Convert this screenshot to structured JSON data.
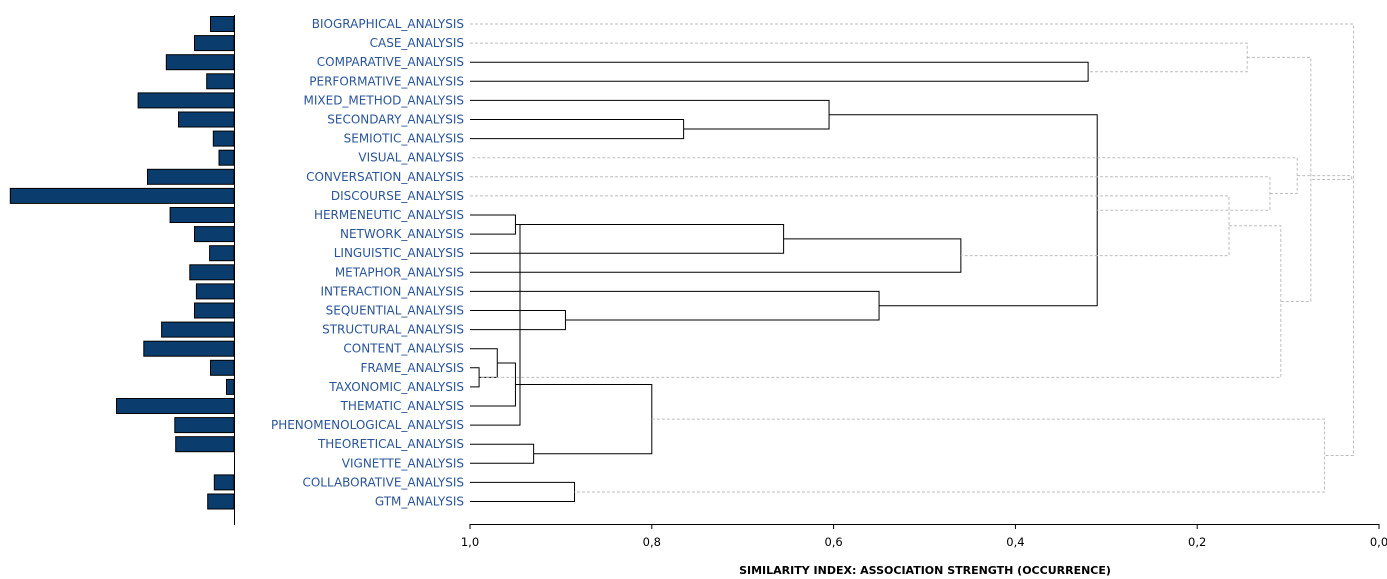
{
  "chart_data": {
    "type": "dendrogram",
    "xlabel": "SIMILARITY INDEX: ASSOCIATION STRENGTH (OCCURRENCE)",
    "xlim": [
      1.0,
      0.0
    ],
    "xticks": [
      "1,0",
      "0,8",
      "0,6",
      "0,4",
      "0,2",
      "0,0"
    ],
    "colors": {
      "bar": "#0a3d6e",
      "label": "#2a5599",
      "solid_link": "#000000",
      "dashed_link": "#bdbdbd"
    },
    "leaves": [
      {
        "label": "BIOGRAPHICAL_ANALYSIS",
        "bar": 2.5
      },
      {
        "label": "CASE_ANALYSIS",
        "bar": 4.2
      },
      {
        "label": "COMPARATIVE_ANALYSIS",
        "bar": 7.2
      },
      {
        "label": "PERFORMATIVE_ANALYSIS",
        "bar": 2.9
      },
      {
        "label": "MIXED_METHOD_ANALYSIS",
        "bar": 10.2
      },
      {
        "label": "SECONDARY_ANALYSIS",
        "bar": 5.9
      },
      {
        "label": "SEMIOTIC_ANALYSIS",
        "bar": 2.2
      },
      {
        "label": "VISUAL_ANALYSIS",
        "bar": 1.6
      },
      {
        "label": "CONVERSATION_ANALYSIS",
        "bar": 9.2
      },
      {
        "label": "DISCOURSE_ANALYSIS",
        "bar": 23.8
      },
      {
        "label": "HERMENEUTIC_ANALYSIS",
        "bar": 6.8
      },
      {
        "label": "NETWORK_ANALYSIS",
        "bar": 4.2
      },
      {
        "label": "LINGUISTIC_ANALYSIS",
        "bar": 2.6
      },
      {
        "label": "METAPHOR_ANALYSIS",
        "bar": 4.7
      },
      {
        "label": "INTERACTION_ANALYSIS",
        "bar": 4.0
      },
      {
        "label": "SEQUENTIAL_ANALYSIS",
        "bar": 4.2
      },
      {
        "label": "STRUCTURAL_ANALYSIS",
        "bar": 7.7
      },
      {
        "label": "CONTENT_ANALYSIS",
        "bar": 9.6
      },
      {
        "label": "FRAME_ANALYSIS",
        "bar": 2.5
      },
      {
        "label": "TAXONOMIC_ANALYSIS",
        "bar": 0.8
      },
      {
        "label": "THEMATIC_ANALYSIS",
        "bar": 12.5
      },
      {
        "label": "PHENOMENOLOGICAL_ANALYSIS",
        "bar": 6.3
      },
      {
        "label": "THEORETICAL_ANALYSIS",
        "bar": 6.2
      },
      {
        "label": "VIGNETTE_ANALYSIS",
        "bar": 0
      },
      {
        "label": "COLLABORATIVE_ANALYSIS",
        "bar": 2.1
      },
      {
        "label": "GTM_ANALYSIS",
        "bar": 2.8
      }
    ],
    "merges": [
      {
        "a": 19,
        "b": 18,
        "sim": 0.99,
        "style": "solid"
      },
      {
        "a": 17,
        "b": 26,
        "sim": 0.97,
        "style": "solid"
      },
      {
        "a": 10,
        "b": 11,
        "sim": 0.95,
        "style": "solid"
      },
      {
        "a": 27,
        "b": 20,
        "sim": 0.95,
        "style": "solid"
      },
      {
        "a": 28,
        "b": 21,
        "sim": 0.945,
        "style": "solid"
      },
      {
        "a": 22,
        "b": 23,
        "sim": 0.93,
        "style": "solid"
      },
      {
        "a": 15,
        "b": 16,
        "sim": 0.895,
        "style": "solid"
      },
      {
        "a": 24,
        "b": 25,
        "sim": 0.885,
        "style": "solid"
      },
      {
        "a": 29,
        "b": 31,
        "sim": 0.8,
        "style": "solid"
      },
      {
        "a": 5,
        "b": 6,
        "sim": 0.765,
        "style": "solid"
      },
      {
        "a": 28,
        "b": 12,
        "sim": 0.655,
        "style": "solid"
      },
      {
        "a": 4,
        "b": 35,
        "sim": 0.605,
        "style": "solid"
      },
      {
        "a": 14,
        "b": 32,
        "sim": 0.55,
        "style": "solid"
      },
      {
        "a": 36,
        "b": 13,
        "sim": 0.46,
        "style": "solid"
      },
      {
        "a": 2,
        "b": 3,
        "sim": 0.32,
        "style": "solid"
      },
      {
        "a": 38,
        "b": 37,
        "sim": 0.31,
        "style": "solid"
      },
      {
        "a": 9,
        "b": 39,
        "sim": 0.165,
        "style": "dashed"
      },
      {
        "a": 1,
        "b": 40,
        "sim": 0.145,
        "style": "dashed"
      },
      {
        "a": 8,
        "b": 41,
        "sim": 0.12,
        "style": "dashed"
      },
      {
        "a": 42,
        "b": 26,
        "sim": 0.108,
        "style": "dashed"
      },
      {
        "a": 44,
        "b": 7,
        "sim": 0.09,
        "style": "dashed"
      },
      {
        "a": 45,
        "b": 43,
        "sim": 0.075,
        "style": "dashed"
      },
      {
        "a": 34,
        "b": 33,
        "sim": 0.06,
        "style": "dashed"
      },
      {
        "a": 46,
        "b": 47,
        "sim": 0.03,
        "style": "dashed"
      },
      {
        "a": 0,
        "b": 48,
        "sim": 0.028,
        "style": "dashed"
      }
    ]
  }
}
